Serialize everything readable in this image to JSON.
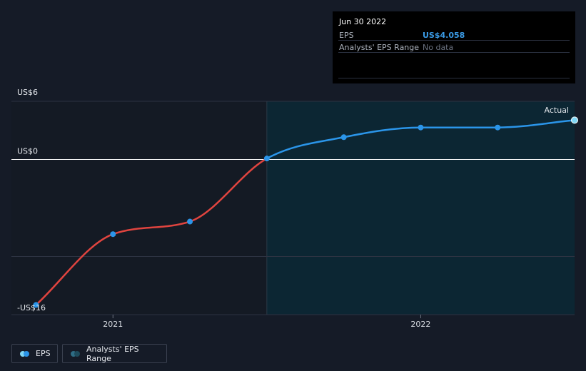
{
  "tooltip": {
    "date": "Jun 30 2022",
    "rows": [
      {
        "label": "EPS",
        "value": "US$4.058",
        "value_color": "#3a9be6"
      },
      {
        "label": "Analysts' EPS Range",
        "value": "No data",
        "value_color": "#6b7280"
      }
    ]
  },
  "chart_data": {
    "type": "line",
    "x_ticks": [
      {
        "label": "2021",
        "x": 2021.0
      },
      {
        "label": "2022",
        "x": 2022.0
      }
    ],
    "y_ticks": [
      {
        "label": "US$6",
        "y": 6
      },
      {
        "label": "US$0",
        "y": 0
      },
      {
        "label": "-US$16",
        "y": -16
      }
    ],
    "ylim": [
      -16,
      6
    ],
    "xlim": [
      2020.67,
      2022.5
    ],
    "actual_label": "Actual",
    "forecast_start_x": 2021.5,
    "series": [
      {
        "name": "EPS",
        "points": [
          {
            "x": 2020.75,
            "y": -15.0
          },
          {
            "x": 2021.0,
            "y": -7.7
          },
          {
            "x": 2021.25,
            "y": -6.4
          },
          {
            "x": 2021.5,
            "y": 0.1
          },
          {
            "x": 2021.75,
            "y": 2.3
          },
          {
            "x": 2022.0,
            "y": 3.3
          },
          {
            "x": 2022.25,
            "y": 3.3
          },
          {
            "x": 2022.5,
            "y": 4.058
          }
        ]
      }
    ]
  },
  "colors": {
    "positive_line": "#2b95e9",
    "negative_line": "#e0443f",
    "forecast_region": "#0c2633",
    "past_region": "#141a24",
    "axis_line": "#ffffff",
    "grid_line": "#2d3342"
  },
  "legend": {
    "items": [
      {
        "label": "EPS",
        "icon": "eps-legend-icon",
        "color_a": "#7fd6f5",
        "color_b": "#2b95e9"
      },
      {
        "label": "Analysts' EPS Range",
        "icon": "range-legend-icon",
        "color_a": "#2e6c84",
        "color_b": "#1d4b5c"
      }
    ]
  }
}
